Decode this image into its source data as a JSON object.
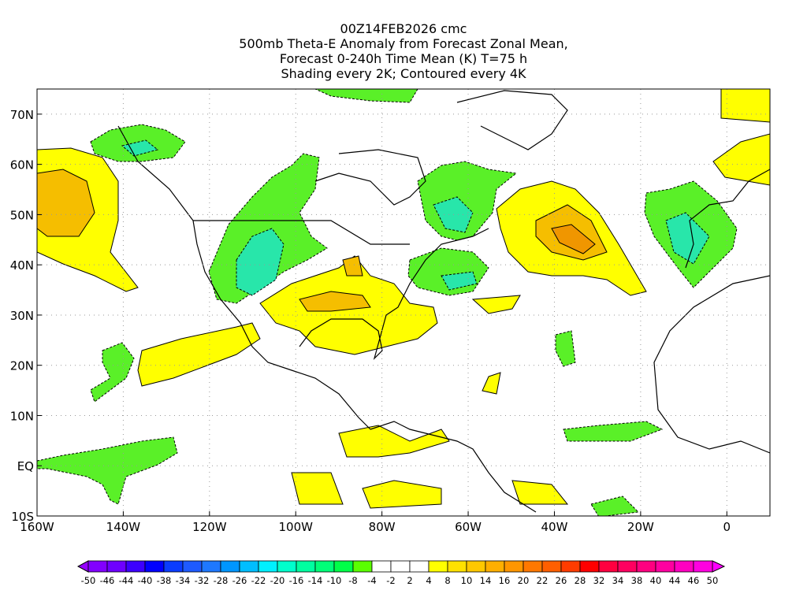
{
  "title": {
    "lines": [
      "00Z14FEB2026 cmc",
      "500mb Theta-E Anomaly from Forecast Zonal Mean,",
      "Forecast 0-240h Time Mean (K) T=75 h",
      "Shading every 2K; Contoured every 4K"
    ]
  },
  "map": {
    "lon_range": [
      -160,
      10
    ],
    "lat_range": [
      -10,
      75
    ],
    "x_ticks": [
      {
        "value": -160,
        "label": "160W"
      },
      {
        "value": -140,
        "label": "140W"
      },
      {
        "value": -120,
        "label": "120W"
      },
      {
        "value": -100,
        "label": "100W"
      },
      {
        "value": -80,
        "label": "80W"
      },
      {
        "value": -60,
        "label": "60W"
      },
      {
        "value": -40,
        "label": "40W"
      },
      {
        "value": -20,
        "label": "20W"
      },
      {
        "value": 0,
        "label": "0"
      }
    ],
    "y_ticks": [
      {
        "value": 70,
        "label": "70N"
      },
      {
        "value": 60,
        "label": "60N"
      },
      {
        "value": 50,
        "label": "50N"
      },
      {
        "value": 40,
        "label": "40N"
      },
      {
        "value": 30,
        "label": "30N"
      },
      {
        "value": 20,
        "label": "20N"
      },
      {
        "value": 10,
        "label": "10N"
      },
      {
        "value": 0,
        "label": "EQ"
      },
      {
        "value": -10,
        "label": "10S"
      }
    ],
    "colors": {
      "neg_light": "#5af028",
      "neg_mid": "#32e678",
      "neg_strong": "#14e6c8",
      "pos_light": "#ffff00",
      "pos_mid": "#f5be00",
      "pos_strong": "#f09600"
    }
  },
  "colorbar": {
    "labels": [
      "-50",
      "-46",
      "-44",
      "-40",
      "-38",
      "-34",
      "-32",
      "-28",
      "-26",
      "-22",
      "-20",
      "-16",
      "-14",
      "-10",
      "-8",
      "-4",
      "-2",
      "2",
      "4",
      "8",
      "10",
      "14",
      "16",
      "20",
      "22",
      "26",
      "28",
      "32",
      "34",
      "38",
      "40",
      "44",
      "46",
      "50"
    ],
    "low_color": "#9600ff",
    "high_color": "#ff00ff",
    "colors": [
      "#8200ff",
      "#6e00ff",
      "#3c00ff",
      "#0000ff",
      "#0a3cff",
      "#1e5aff",
      "#1e78ff",
      "#0096ff",
      "#00beff",
      "#00f0ff",
      "#00ffcc",
      "#00ffa0",
      "#00ff78",
      "#00ff48",
      "#5aff00",
      "#ffffff",
      "#ffffff",
      "#ffffff",
      "#ffff00",
      "#ffe100",
      "#ffc800",
      "#ffaf00",
      "#ff9600",
      "#ff7800",
      "#ff5f00",
      "#ff3c00",
      "#ff0000",
      "#ff0040",
      "#ff0060",
      "#ff0080",
      "#ff00a0",
      "#ff00c0",
      "#ff00e0"
    ]
  }
}
